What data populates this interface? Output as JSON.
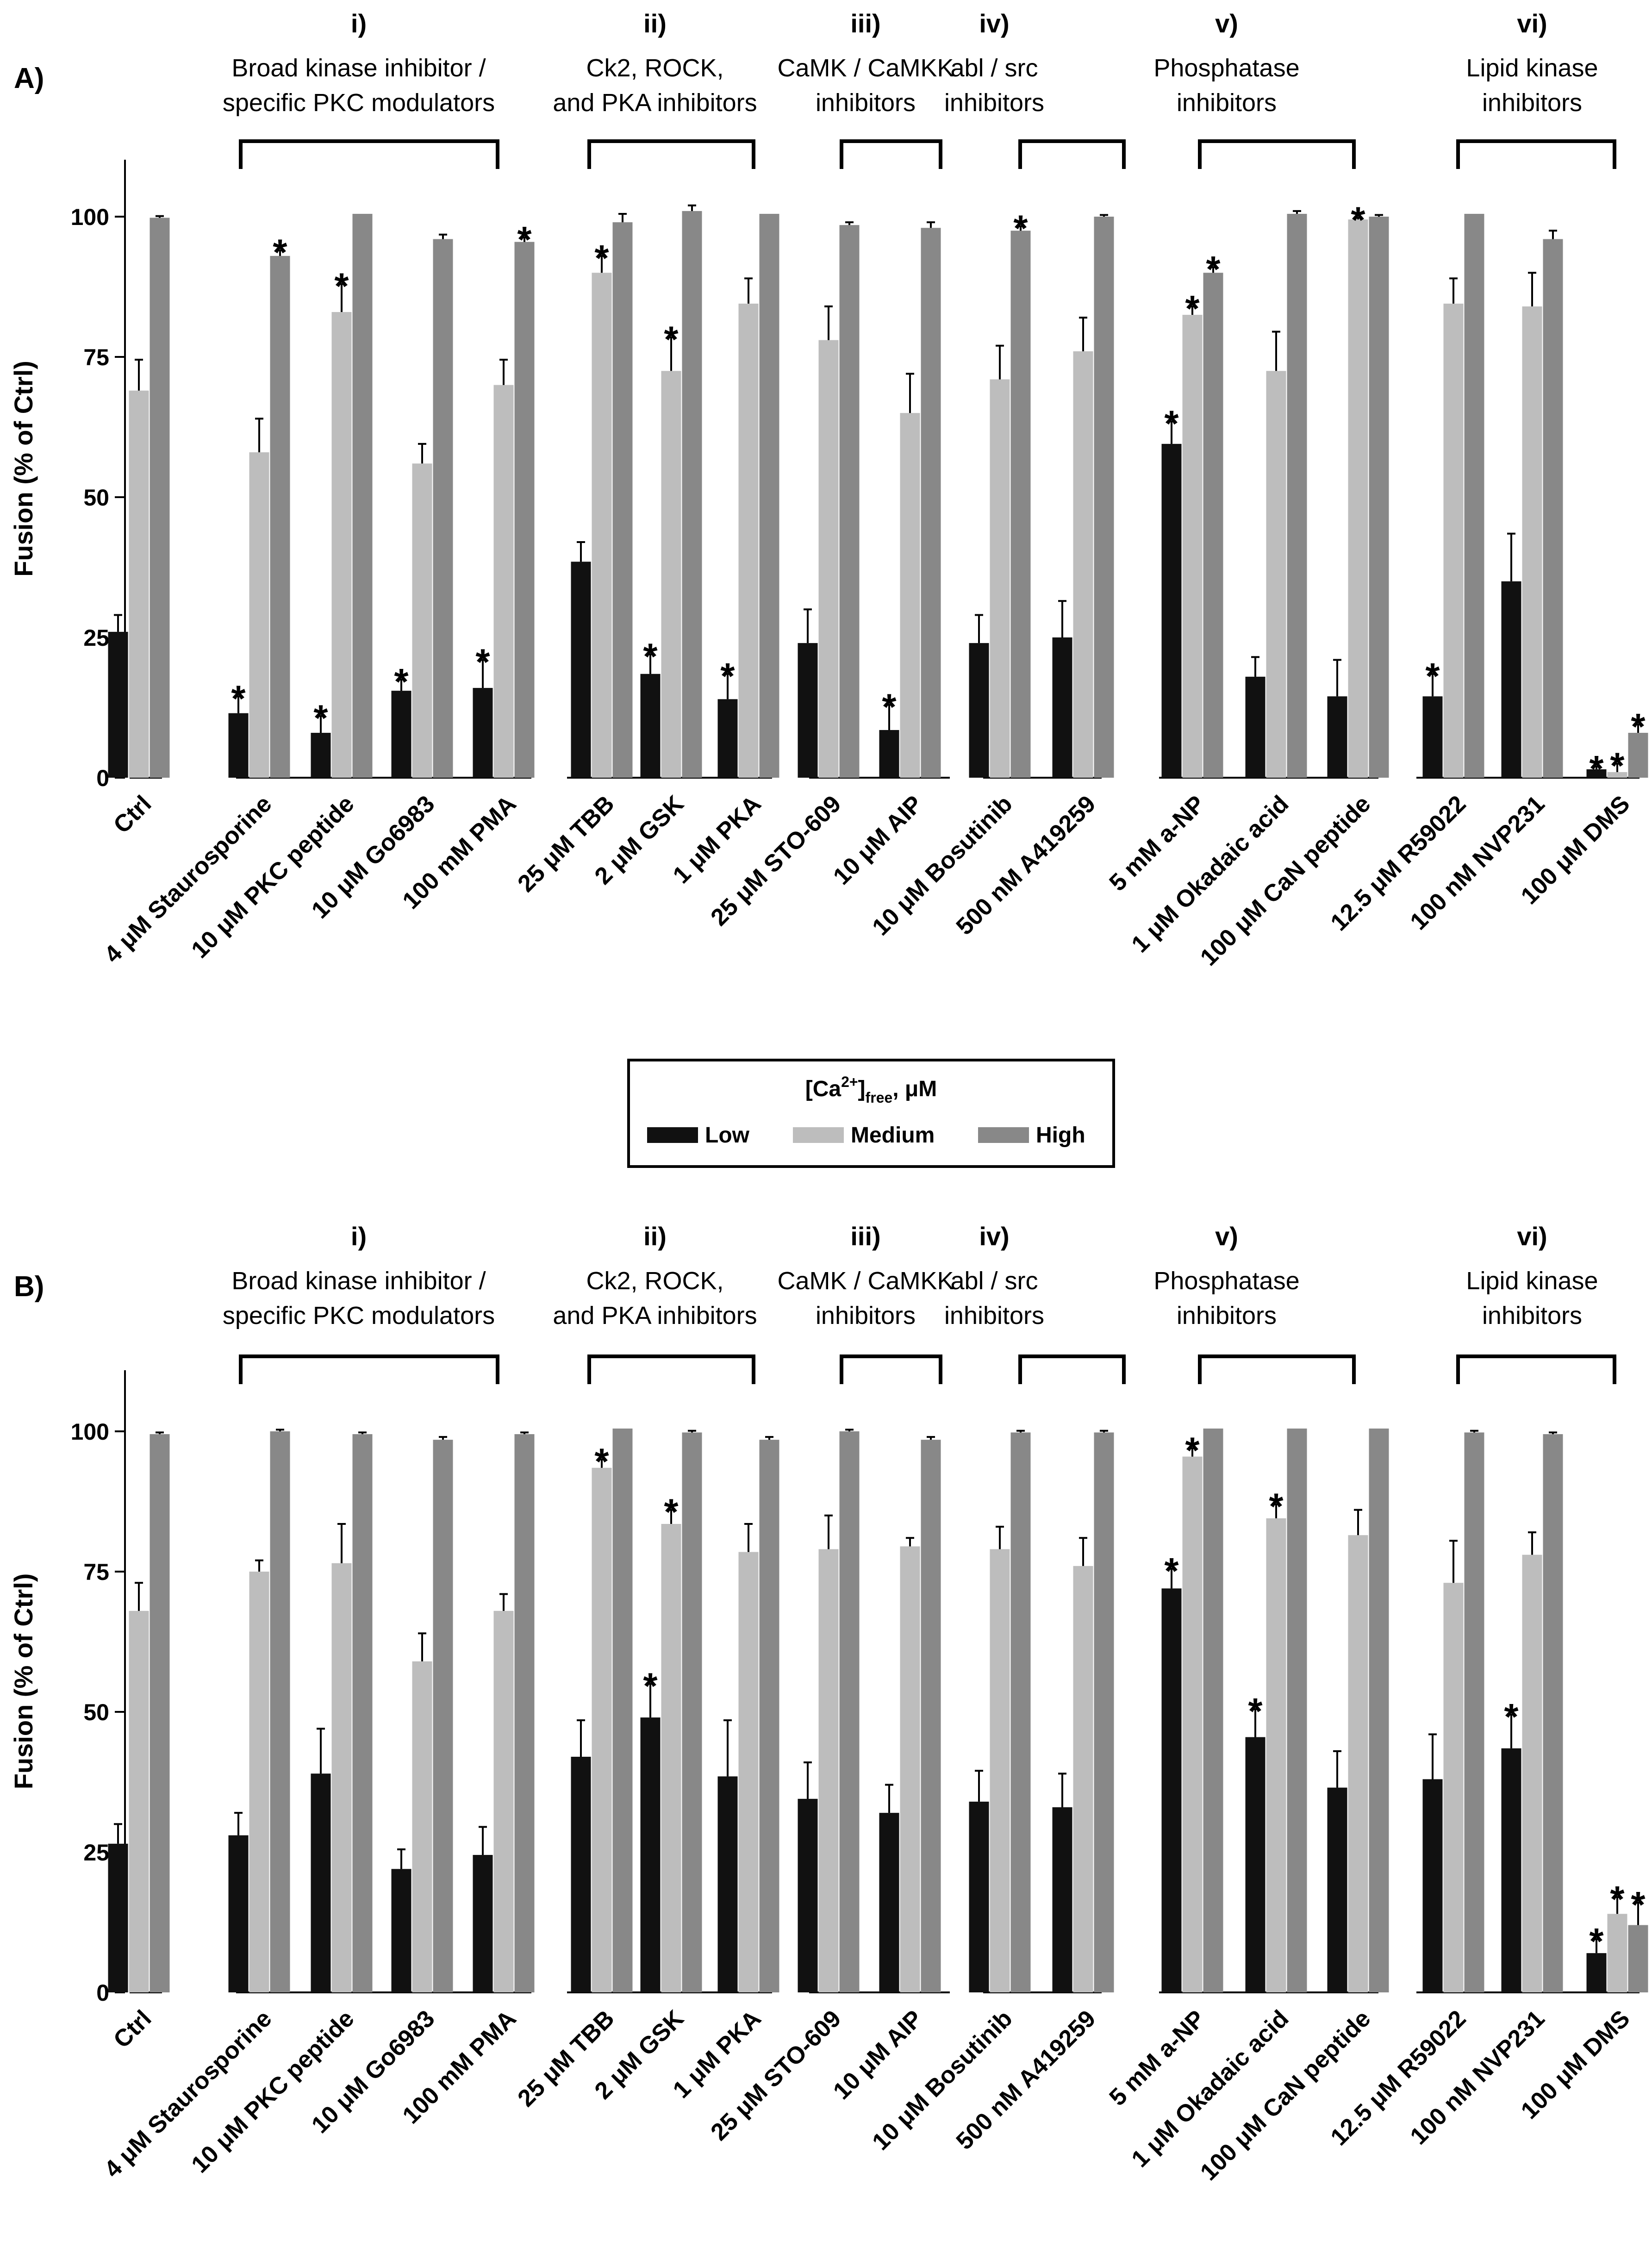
{
  "colors": {
    "low": "#111111",
    "medium": "#bdbdbd",
    "high": "#888888",
    "axis": "#000000",
    "background": "#ffffff"
  },
  "legend": {
    "title_main": "[Ca",
    "title_sup": "2+",
    "title_close": "]",
    "title_sub": "free",
    "title_unit": ", μM",
    "items": [
      {
        "label": "Low",
        "color": "#111111"
      },
      {
        "label": "Medium",
        "color": "#bdbdbd"
      },
      {
        "label": "High",
        "color": "#888888"
      }
    ]
  },
  "chart_data": [
    {
      "type": "bar",
      "panel_label": "A)",
      "ylabel": "Fusion (% of Ctrl)",
      "ylim": [
        0,
        110
      ],
      "yticks": [
        "0",
        "25",
        "50",
        "75",
        "100"
      ],
      "ytick_values": [
        0,
        25,
        50,
        75,
        100
      ],
      "series_names": [
        "Low",
        "Medium",
        "High"
      ],
      "groups": [
        {
          "numeral": "",
          "title": [],
          "categories": [
            {
              "label": "Ctrl",
              "values": [
                26,
                69,
                99.8
              ],
              "errors": [
                3,
                5.5,
                0.3
              ],
              "stars": [
                false,
                false,
                false
              ]
            }
          ]
        },
        {
          "numeral": "i)",
          "title": [
            "Broad kinase inhibitor /",
            "specific PKC modulators"
          ],
          "categories": [
            {
              "label": "4 μM Staurosporine",
              "values": [
                11.5,
                58,
                93
              ],
              "errors": [
                3,
                6,
                1
              ],
              "stars": [
                true,
                false,
                true
              ]
            },
            {
              "label": "10 μM PKC peptide",
              "values": [
                8,
                83,
                100.5
              ],
              "errors": [
                3,
                5,
                0
              ],
              "stars": [
                true,
                true,
                false
              ]
            },
            {
              "label": "10 μM Go6983",
              "values": [
                15.5,
                56,
                96
              ],
              "errors": [
                2,
                3.5,
                0.8
              ],
              "stars": [
                true,
                false,
                false
              ]
            },
            {
              "label": "100 mM PMA",
              "values": [
                16,
                70,
                95.5
              ],
              "errors": [
                5,
                4.5,
                0.8
              ],
              "stars": [
                true,
                false,
                true
              ]
            }
          ]
        },
        {
          "numeral": "ii)",
          "title": [
            "Ck2, ROCK,",
            "and PKA inhibitors"
          ],
          "categories": [
            {
              "label": "25 μM TBB",
              "values": [
                38.5,
                90,
                99
              ],
              "errors": [
                3.5,
                3,
                1.5
              ],
              "stars": [
                false,
                true,
                false
              ]
            },
            {
              "label": "2 μM GSK",
              "values": [
                18.5,
                72.5,
                101
              ],
              "errors": [
                3.5,
                6,
                1
              ],
              "stars": [
                true,
                true,
                false
              ]
            },
            {
              "label": "1 μM PKA",
              "values": [
                14,
                84.5,
                100.5
              ],
              "errors": [
                4.5,
                4.5,
                0
              ],
              "stars": [
                true,
                false,
                false
              ]
            }
          ]
        },
        {
          "numeral": "iii)",
          "title": [
            "CaMK / CaMKK",
            "inhibitors"
          ],
          "categories": [
            {
              "label": "25 μM STO-609",
              "values": [
                24,
                78,
                98.5
              ],
              "errors": [
                6,
                6,
                0.5
              ],
              "stars": [
                false,
                false,
                false
              ]
            },
            {
              "label": "10 μM AIP",
              "values": [
                8.5,
                65,
                98
              ],
              "errors": [
                4.5,
                7,
                1
              ],
              "stars": [
                true,
                false,
                false
              ]
            }
          ]
        },
        {
          "numeral": "iv)",
          "title": [
            "abl / src",
            "inhibitors"
          ],
          "categories": [
            {
              "label": "10 μM Bosutinib",
              "values": [
                24,
                71,
                97.5
              ],
              "errors": [
                5,
                6,
                0.8
              ],
              "stars": [
                false,
                false,
                true
              ]
            },
            {
              "label": "500 nM A419259",
              "values": [
                25,
                76,
                100
              ],
              "errors": [
                6.5,
                6,
                0.3
              ],
              "stars": [
                false,
                false,
                false
              ]
            }
          ]
        },
        {
          "numeral": "v)",
          "title": [
            "Phosphatase",
            "inhibitors"
          ],
          "categories": [
            {
              "label": "5 mM a-NP",
              "values": [
                59.5,
                82.5,
                90
              ],
              "errors": [
                4,
                1.5,
                1
              ],
              "stars": [
                true,
                true,
                true
              ]
            },
            {
              "label": "1 μM Okadaic acid",
              "values": [
                18,
                72.5,
                100.5
              ],
              "errors": [
                3.5,
                7,
                0.5
              ],
              "stars": [
                false,
                false,
                false
              ]
            },
            {
              "label": "100 μM CaN peptide",
              "values": [
                14.5,
                99.5,
                100
              ],
              "errors": [
                6.5,
                0.3,
                0.3
              ],
              "stars": [
                false,
                true,
                false
              ]
            }
          ]
        },
        {
          "numeral": "vi)",
          "title": [
            "Lipid kinase",
            "inhibitors"
          ],
          "categories": [
            {
              "label": "12.5 μM R59022",
              "values": [
                14.5,
                84.5,
                100.5
              ],
              "errors": [
                4,
                4.5,
                0
              ],
              "stars": [
                true,
                false,
                false
              ]
            },
            {
              "label": "100 nM NVP231",
              "values": [
                35,
                84,
                96
              ],
              "errors": [
                8.5,
                6,
                1.5
              ],
              "stars": [
                false,
                false,
                false
              ]
            },
            {
              "label": "100 μM DMS",
              "values": [
                1.5,
                1,
                8
              ],
              "errors": [
                0.5,
                1.5,
                1.5
              ],
              "stars": [
                true,
                true,
                true
              ]
            }
          ]
        }
      ]
    },
    {
      "type": "bar",
      "panel_label": "B)",
      "ylabel": "Fusion (% of Ctrl)",
      "ylim": [
        0,
        110
      ],
      "yticks": [
        "0",
        "25",
        "50",
        "75",
        "100"
      ],
      "ytick_values": [
        0,
        25,
        50,
        75,
        100
      ],
      "series_names": [
        "Low",
        "Medium",
        "High"
      ],
      "groups": [
        {
          "numeral": "",
          "title": [],
          "categories": [
            {
              "label": "Ctrl",
              "values": [
                26.5,
                68,
                99.5
              ],
              "errors": [
                3.5,
                5,
                0.3
              ],
              "stars": [
                false,
                false,
                false
              ]
            }
          ]
        },
        {
          "numeral": "i)",
          "title": [
            "Broad kinase inhibitor /",
            "specific PKC modulators"
          ],
          "categories": [
            {
              "label": "4 μM Staurosporine",
              "values": [
                28,
                75,
                100
              ],
              "errors": [
                4,
                2,
                0.3
              ],
              "stars": [
                false,
                false,
                false
              ]
            },
            {
              "label": "10 μM PKC peptide",
              "values": [
                39,
                76.5,
                99.5
              ],
              "errors": [
                8,
                7,
                0.3
              ],
              "stars": [
                false,
                false,
                false
              ]
            },
            {
              "label": "10 μM Go6983",
              "values": [
                22,
                59,
                98.5
              ],
              "errors": [
                3.5,
                5,
                0.5
              ],
              "stars": [
                false,
                false,
                false
              ]
            },
            {
              "label": "100 mM PMA",
              "values": [
                24.5,
                68,
                99.5
              ],
              "errors": [
                5,
                3,
                0.3
              ],
              "stars": [
                false,
                false,
                false
              ]
            }
          ]
        },
        {
          "numeral": "ii)",
          "title": [
            "Ck2, ROCK,",
            "and PKA inhibitors"
          ],
          "categories": [
            {
              "label": "25 μM TBB",
              "values": [
                42,
                93.5,
                100.5
              ],
              "errors": [
                6.5,
                1.5,
                0
              ],
              "stars": [
                false,
                true,
                false
              ]
            },
            {
              "label": "2 μM GSK",
              "values": [
                49,
                83.5,
                99.8
              ],
              "errors": [
                6,
                2.5,
                0.3
              ],
              "stars": [
                true,
                true,
                false
              ]
            },
            {
              "label": "1 μM PKA",
              "values": [
                38.5,
                78.5,
                98.5
              ],
              "errors": [
                10,
                5,
                0.5
              ],
              "stars": [
                false,
                false,
                false
              ]
            }
          ]
        },
        {
          "numeral": "iii)",
          "title": [
            "CaMK / CaMKK",
            "inhibitors"
          ],
          "categories": [
            {
              "label": "25 μM STO-609",
              "values": [
                34.5,
                79,
                100
              ],
              "errors": [
                6.5,
                6,
                0.3
              ],
              "stars": [
                false,
                false,
                false
              ]
            },
            {
              "label": "10 μM AIP",
              "values": [
                32,
                79.5,
                98.5
              ],
              "errors": [
                5,
                1.5,
                0.5
              ],
              "stars": [
                false,
                false,
                false
              ]
            }
          ]
        },
        {
          "numeral": "iv)",
          "title": [
            "abl / src",
            "inhibitors"
          ],
          "categories": [
            {
              "label": "10 μM Bosutinib",
              "values": [
                34,
                79,
                99.8
              ],
              "errors": [
                5.5,
                4,
                0.3
              ],
              "stars": [
                false,
                false,
                false
              ]
            },
            {
              "label": "500 nM A419259",
              "values": [
                33,
                76,
                99.8
              ],
              "errors": [
                6,
                5,
                0.3
              ],
              "stars": [
                false,
                false,
                false
              ]
            }
          ]
        },
        {
          "numeral": "v)",
          "title": [
            "Phosphatase",
            "inhibitors"
          ],
          "categories": [
            {
              "label": "5 mM a-NP",
              "values": [
                72,
                95.5,
                100.5
              ],
              "errors": [
                3.5,
                1.5,
                0
              ],
              "stars": [
                true,
                true,
                false
              ]
            },
            {
              "label": "1 μM Okadaic acid",
              "values": [
                45.5,
                84.5,
                100.5
              ],
              "errors": [
                5,
                2.5,
                0
              ],
              "stars": [
                true,
                true,
                false
              ]
            },
            {
              "label": "100 μM CaN peptide",
              "values": [
                36.5,
                81.5,
                100.5
              ],
              "errors": [
                6.5,
                4.5,
                0
              ],
              "stars": [
                false,
                false,
                false
              ]
            }
          ]
        },
        {
          "numeral": "vi)",
          "title": [
            "Lipid kinase",
            "inhibitors"
          ],
          "categories": [
            {
              "label": "12.5 μM R59022",
              "values": [
                38,
                73,
                99.8
              ],
              "errors": [
                8,
                7.5,
                0.3
              ],
              "stars": [
                false,
                false,
                false
              ]
            },
            {
              "label": "100 nM NVP231",
              "values": [
                43.5,
                78,
                99.5
              ],
              "errors": [
                6,
                4,
                0.3
              ],
              "stars": [
                true,
                false,
                false
              ]
            },
            {
              "label": "100 μM DMS",
              "values": [
                7,
                14,
                12
              ],
              "errors": [
                2.5,
                3,
                4
              ],
              "stars": [
                true,
                true,
                true
              ]
            }
          ]
        }
      ]
    }
  ]
}
